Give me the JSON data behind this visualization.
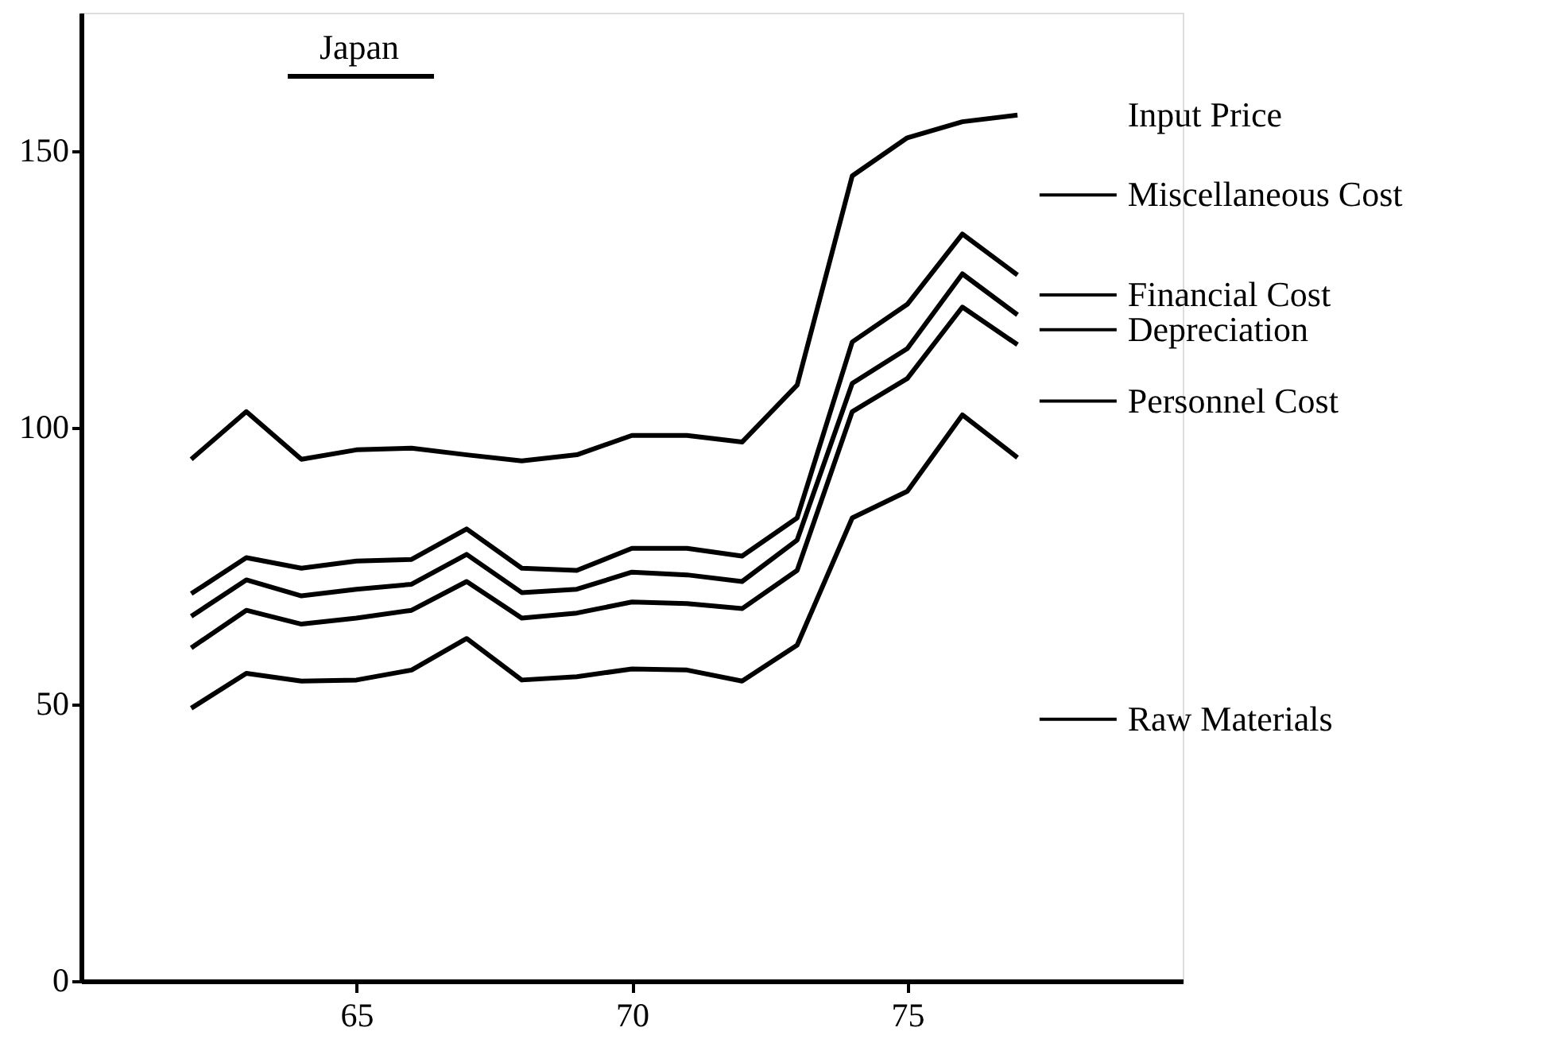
{
  "chart_data": {
    "type": "line",
    "title": "Japan",
    "legend": false,
    "grid": false,
    "line_style": "solid",
    "x": [
      62,
      63,
      64,
      65,
      66,
      67,
      68,
      69,
      70,
      71,
      72,
      73,
      74,
      75,
      76,
      77
    ],
    "xlim": [
      60,
      80
    ],
    "xticks": [
      65,
      70,
      75
    ],
    "ylim": [
      0,
      175
    ],
    "yticks": [
      0,
      50,
      100,
      150
    ],
    "series": [
      {
        "color": "#000000",
        "values": [
          49.3,
          55.6,
          54.2,
          54.4,
          56.2,
          61.9,
          54.4,
          55.0,
          56.4,
          56.2,
          54.2,
          60.7,
          83.7,
          88.5,
          102.3,
          94.6
        ]
      },
      {
        "color": "#000000",
        "values": [
          60.2,
          67.0,
          64.5,
          65.6,
          67.0,
          72.2,
          65.6,
          66.5,
          68.5,
          68.2,
          67.3,
          74.2,
          102.9,
          108.9,
          121.8,
          115.0
        ]
      },
      {
        "color": "#000000",
        "values": [
          65.9,
          72.5,
          69.6,
          70.8,
          71.7,
          77.1,
          70.2,
          70.8,
          73.9,
          73.4,
          72.2,
          79.7,
          108.0,
          114.3,
          127.8,
          120.4
        ]
      },
      {
        "color": "#000000",
        "values": [
          70.0,
          76.5,
          74.6,
          75.9,
          76.2,
          81.7,
          74.6,
          74.2,
          78.2,
          78.2,
          76.8,
          83.7,
          115.5,
          122.3,
          135.0,
          127.6
        ]
      },
      {
        "name": "Input Price",
        "color": "#000000",
        "values": [
          94.3,
          102.9,
          94.3,
          96.0,
          96.3,
          95.1,
          94.0,
          95.1,
          98.6,
          98.6,
          97.4,
          107.7,
          145.5,
          152.4,
          155.3,
          156.5
        ]
      }
    ],
    "annotations": [
      "Miscellaneous Cost",
      "Financial Cost",
      "Depreciation",
      "Personnel Cost",
      "Raw Materials"
    ]
  }
}
